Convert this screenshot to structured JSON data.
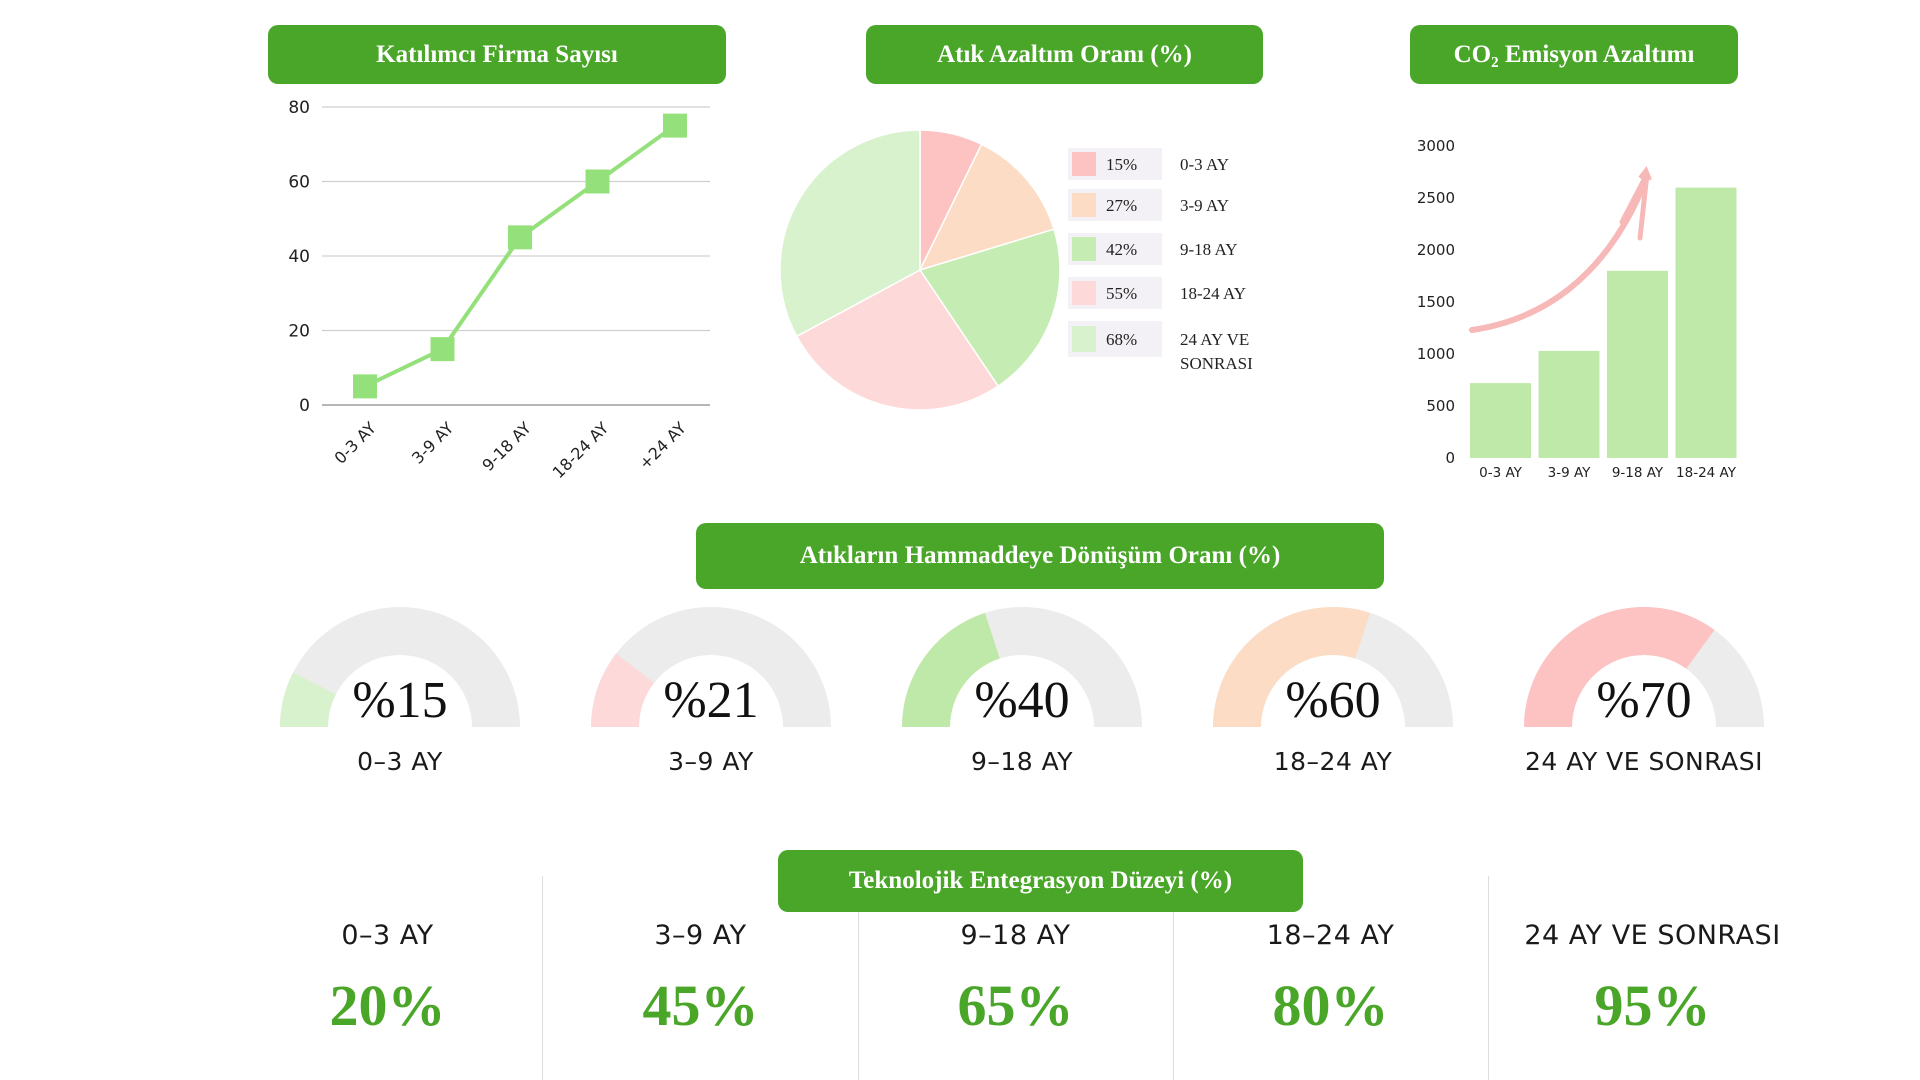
{
  "colors": {
    "accent": "#4aa628",
    "line": "#94e07a",
    "pale_green": "#d7f2cc",
    "green": "#bfe9a8",
    "pink": "#fdc3c3",
    "peach": "#fcdcc4",
    "light_pink": "#fdd9d9",
    "gauge_track": "#ececec"
  },
  "chart_data": [
    {
      "type": "line",
      "title": "Katılımcı Firma Sayısı",
      "categories": [
        "0-3 AY",
        "3-9 AY",
        "9-18 AY",
        "18-24 AY",
        "+24 AY"
      ],
      "values": [
        5,
        15,
        45,
        60,
        75
      ],
      "ylim": [
        0,
        80
      ],
      "yticks": [
        "0",
        "20",
        "40",
        "60",
        "80"
      ],
      "grid": true
    },
    {
      "type": "pie",
      "title": "Atık Azaltım Oranı (%)",
      "legend": [
        {
          "value": 15,
          "value_label": "15%",
          "label": "0-3 AY",
          "color": "#fdc3c3"
        },
        {
          "value": 27,
          "value_label": "27%",
          "label": "3-9 AY",
          "color": "#fcdcc4"
        },
        {
          "value": 42,
          "value_label": "42%",
          "label": "9-18 AY",
          "color": "#c5ecb2"
        },
        {
          "value": 55,
          "value_label": "55%",
          "label": "18-24 AY",
          "color": "#fdd9d9"
        },
        {
          "value": 68,
          "value_label": "68%",
          "label_line1": "24 AY VE",
          "label_line2": "SONRASI",
          "color": "#d7f2cc"
        }
      ]
    },
    {
      "type": "bar",
      "title": "CO₂ Emisyon Azaltımı",
      "categories": [
        "0-3 AY",
        "3-9 AY",
        "9-18 AY",
        "18-24 AY"
      ],
      "values": [
        720,
        1030,
        1800,
        2600
      ],
      "ylim": [
        0,
        3000
      ],
      "yticks": [
        "0",
        "500",
        "1000",
        "1500",
        "2000",
        "2500",
        "3000"
      ]
    },
    {
      "type": "gauge",
      "title": "Atıkların Hammaddeye Dönüşüm Oranı (%)",
      "items": [
        {
          "value": 15,
          "display": "%15",
          "label": "0–3 AY",
          "color": "#d7f2cc"
        },
        {
          "value": 21,
          "display": "%21",
          "label": "3–9 AY",
          "color": "#fdd9d9"
        },
        {
          "value": 40,
          "display": "%40",
          "label": "9–18 AY",
          "color": "#bfe9a8"
        },
        {
          "value": 60,
          "display": "%60",
          "label": "18–24 AY",
          "color": "#fcdcc4"
        },
        {
          "value": 70,
          "display": "%70",
          "label": "24 AY VE SONRASI",
          "color": "#fdc3c3"
        }
      ]
    },
    {
      "type": "table",
      "title": "Teknolojik Entegrasyon Düzeyi (%)",
      "items": [
        {
          "label": "0–3 AY",
          "value": "20%"
        },
        {
          "label": "3–9 AY",
          "value": "45%"
        },
        {
          "label": "9–18 AY",
          "value": "65%"
        },
        {
          "label": "18–24 AY",
          "value": "80%"
        },
        {
          "label": "24 AY VE SONRASI",
          "value": "95%"
        }
      ]
    }
  ]
}
